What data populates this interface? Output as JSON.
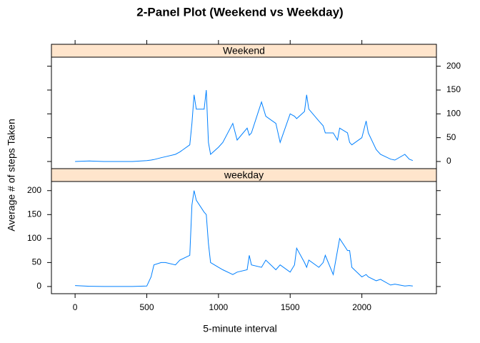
{
  "chart_data": {
    "type": "line",
    "title": "2-Panel Plot (Weekend vs Weekday)",
    "x_label": "5-minute interval",
    "y_label": "Average # of steps Taken",
    "x": [
      0,
      100,
      200,
      300,
      400,
      500,
      530,
      550,
      600,
      630,
      700,
      730,
      800,
      815,
      830,
      845,
      900,
      915,
      930,
      945,
      1000,
      1030,
      1100,
      1130,
      1200,
      1215,
      1230,
      1300,
      1330,
      1400,
      1430,
      1500,
      1530,
      1545,
      1600,
      1615,
      1630,
      1700,
      1730,
      1745,
      1800,
      1830,
      1845,
      1900,
      1915,
      1930,
      2000,
      2030,
      2045,
      2100,
      2130,
      2200,
      2230,
      2300,
      2330,
      2355
    ],
    "series": [
      {
        "name": "Weekend",
        "color": "#0080ff",
        "values": [
          0,
          1,
          0,
          0,
          0,
          2,
          3,
          4,
          8,
          10,
          15,
          20,
          35,
          80,
          140,
          110,
          110,
          150,
          40,
          15,
          30,
          40,
          80,
          45,
          70,
          55,
          60,
          125,
          95,
          80,
          40,
          100,
          95,
          90,
          105,
          140,
          110,
          85,
          75,
          60,
          60,
          45,
          70,
          60,
          40,
          35,
          50,
          85,
          60,
          25,
          15,
          5,
          3,
          15,
          5,
          2
        ]
      },
      {
        "name": "weekday",
        "color": "#0080ff",
        "values": [
          2,
          0.5,
          0,
          0,
          0,
          1,
          20,
          45,
          50,
          50,
          45,
          55,
          65,
          170,
          200,
          180,
          155,
          150,
          90,
          50,
          40,
          35,
          25,
          30,
          35,
          65,
          45,
          40,
          55,
          35,
          45,
          30,
          45,
          80,
          50,
          40,
          55,
          40,
          50,
          65,
          25,
          75,
          100,
          75,
          75,
          40,
          20,
          25,
          20,
          12,
          15,
          3,
          5,
          1,
          2,
          1
        ]
      }
    ],
    "xlim": [
      -165,
      2520
    ],
    "xticks": [
      0,
      500,
      1000,
      1500,
      2000
    ],
    "ylim": [
      -15,
      219
    ],
    "yticks": [
      0,
      50,
      100,
      150,
      200
    ],
    "strip_color": "#ffe5cc"
  }
}
